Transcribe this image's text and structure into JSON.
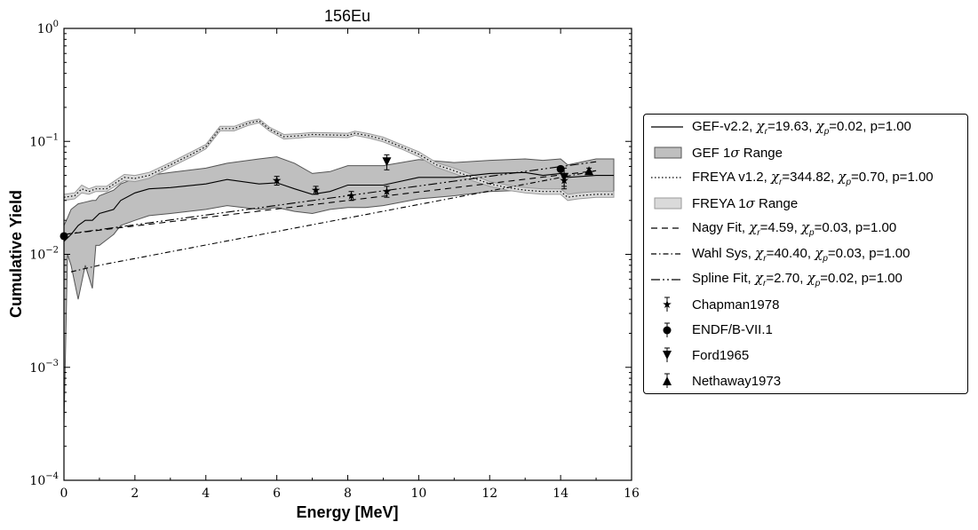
{
  "chart_data": {
    "type": "line",
    "title": "156Eu",
    "xlabel": "Energy [MeV]",
    "ylabel": "Cumulative Yield",
    "xlim": [
      0,
      16
    ],
    "ylim": [
      0.0001,
      1
    ],
    "yscale": "log",
    "x_ticks": [
      "0",
      "2",
      "4",
      "6",
      "8",
      "10",
      "12",
      "14",
      "16"
    ],
    "y_ticks": [
      {
        "base": "10",
        "exp": "−4"
      },
      {
        "base": "10",
        "exp": "−3"
      },
      {
        "base": "10",
        "exp": "−2"
      },
      {
        "base": "10",
        "exp": "−1"
      },
      {
        "base": "10",
        "exp": "0"
      }
    ],
    "legend_position": "right, outside",
    "legend": [
      {
        "label": "GEF-v2.2, ",
        "stats": {
          "chi_r": "19.63",
          "chi_p": "0.02",
          "p": "1.00"
        }
      },
      {
        "label": "GEF 1",
        "sigma_suffix": " Range"
      },
      {
        "label": "FREYA v1.2, ",
        "stats": {
          "chi_r": "344.82",
          "chi_p": "0.70",
          "p": "1.00"
        }
      },
      {
        "label": "FREYA 1",
        "sigma_suffix": " Range"
      },
      {
        "label": "Nagy Fit, ",
        "stats": {
          "chi_r": "4.59",
          "chi_p": "0.03",
          "p": "1.00"
        }
      },
      {
        "label": "Wahl Sys, ",
        "stats": {
          "chi_r": "40.40",
          "chi_p": "0.03",
          "p": "1.00"
        }
      },
      {
        "label": "Spline Fit, ",
        "stats": {
          "chi_r": "2.70",
          "chi_p": "0.02",
          "p": "1.00"
        }
      },
      {
        "label": "Chapman1978"
      },
      {
        "label": "ENDF/B-VII.1"
      },
      {
        "label": "Ford1965"
      },
      {
        "label": "Nethaway1973"
      }
    ],
    "series": [
      {
        "name": "GEF-v2.2",
        "kind": "line",
        "style": "solid",
        "x": [
          0,
          0.2,
          0.4,
          0.6,
          0.8,
          1.0,
          1.4,
          1.6,
          2.0,
          2.4,
          3.0,
          4.0,
          4.6,
          5.5,
          6.0,
          6.5,
          7.0,
          7.5,
          8.0,
          8.5,
          9.0,
          10.0,
          11.0,
          12.0,
          13.0,
          13.5,
          14.0,
          14.2,
          15.0,
          15.5
        ],
        "y": [
          0.013,
          0.015,
          0.018,
          0.02,
          0.02,
          0.023,
          0.025,
          0.03,
          0.035,
          0.038,
          0.039,
          0.042,
          0.046,
          0.042,
          0.043,
          0.038,
          0.034,
          0.036,
          0.041,
          0.041,
          0.041,
          0.048,
          0.048,
          0.052,
          0.053,
          0.05,
          0.052,
          0.048,
          0.05,
          0.05
        ]
      },
      {
        "name": "GEF 1σ Range",
        "kind": "band",
        "x": [
          0,
          0.1,
          0.2,
          0.4,
          0.6,
          0.8,
          0.9,
          1.0,
          1.4,
          1.6,
          2.0,
          2.4,
          3.0,
          4.0,
          4.6,
          5.5,
          6.0,
          6.5,
          7.0,
          7.5,
          8.0,
          8.5,
          9.0,
          10.0,
          11.0,
          12.0,
          13.0,
          13.5,
          14.0,
          14.2,
          15.0,
          15.5
        ],
        "lower": [
          0.0003,
          0.01,
          0.008,
          0.004,
          0.008,
          0.005,
          0.012,
          0.012,
          0.015,
          0.018,
          0.02,
          0.022,
          0.023,
          0.025,
          0.027,
          0.025,
          0.026,
          0.024,
          0.023,
          0.025,
          0.026,
          0.026,
          0.027,
          0.031,
          0.033,
          0.036,
          0.037,
          0.035,
          0.036,
          0.031,
          0.035,
          0.035
        ],
        "upper": [
          0.018,
          0.021,
          0.025,
          0.028,
          0.029,
          0.03,
          0.03,
          0.033,
          0.037,
          0.042,
          0.047,
          0.05,
          0.053,
          0.058,
          0.064,
          0.07,
          0.073,
          0.064,
          0.052,
          0.054,
          0.061,
          0.061,
          0.061,
          0.069,
          0.065,
          0.068,
          0.07,
          0.068,
          0.07,
          0.062,
          0.07,
          0.07
        ]
      },
      {
        "name": "FREYA v1.2",
        "kind": "line",
        "style": "dotted",
        "x": [
          0,
          0.3,
          0.5,
          0.7,
          0.9,
          1.2,
          1.7,
          2.0,
          2.4,
          3.0,
          3.6,
          4.0,
          4.4,
          4.8,
          5.2,
          5.5,
          5.8,
          6.2,
          6.6,
          7.0,
          7.5,
          8.0,
          8.2,
          8.6,
          9.0,
          9.5,
          10.0,
          10.5,
          11.0,
          11.5,
          12.0,
          12.5,
          13.0,
          13.5,
          14.0,
          14.2,
          14.5,
          15.0,
          15.5
        ],
        "y": [
          0.032,
          0.033,
          0.038,
          0.036,
          0.038,
          0.038,
          0.048,
          0.047,
          0.05,
          0.062,
          0.077,
          0.09,
          0.13,
          0.13,
          0.145,
          0.152,
          0.128,
          0.11,
          0.112,
          0.115,
          0.114,
          0.113,
          0.118,
          0.112,
          0.104,
          0.09,
          0.077,
          0.062,
          0.055,
          0.048,
          0.042,
          0.039,
          0.037,
          0.036,
          0.036,
          0.032,
          0.033,
          0.034,
          0.034
        ]
      },
      {
        "name": "FREYA 1σ Range",
        "kind": "band",
        "x": [
          0,
          0.3,
          0.5,
          0.7,
          0.9,
          1.2,
          1.7,
          2.0,
          2.4,
          3.0,
          3.6,
          4.0,
          4.4,
          4.8,
          5.2,
          5.5,
          5.8,
          6.2,
          6.6,
          7.0,
          7.5,
          8.0,
          8.2,
          8.6,
          9.0,
          9.5,
          10.0,
          10.5,
          11.0,
          11.5,
          12.0,
          12.5,
          13.0,
          13.5,
          14.0,
          14.2,
          14.5,
          15.0,
          15.5
        ],
        "lower": [
          0.03,
          0.031,
          0.035,
          0.034,
          0.036,
          0.036,
          0.045,
          0.044,
          0.047,
          0.059,
          0.073,
          0.086,
          0.124,
          0.124,
          0.139,
          0.146,
          0.123,
          0.105,
          0.107,
          0.11,
          0.109,
          0.108,
          0.113,
          0.107,
          0.099,
          0.086,
          0.073,
          0.059,
          0.052,
          0.045,
          0.04,
          0.037,
          0.035,
          0.034,
          0.034,
          0.03,
          0.031,
          0.032,
          0.032
        ],
        "upper": [
          0.034,
          0.035,
          0.041,
          0.038,
          0.04,
          0.04,
          0.051,
          0.05,
          0.053,
          0.065,
          0.081,
          0.094,
          0.136,
          0.136,
          0.151,
          0.158,
          0.133,
          0.115,
          0.117,
          0.12,
          0.119,
          0.118,
          0.123,
          0.117,
          0.109,
          0.094,
          0.081,
          0.065,
          0.058,
          0.051,
          0.044,
          0.041,
          0.039,
          0.038,
          0.038,
          0.034,
          0.035,
          0.036,
          0.036
        ]
      },
      {
        "name": "Nagy Fit",
        "kind": "line",
        "style": "dashed",
        "x": [
          0,
          15
        ],
        "y": [
          0.015,
          0.055
        ]
      },
      {
        "name": "Wahl Sys",
        "kind": "line",
        "style": "dashdot",
        "x": [
          0.2,
          1,
          15
        ],
        "y": [
          0.007,
          0.008,
          0.055
        ]
      },
      {
        "name": "Spline Fit",
        "kind": "line",
        "style": "dashdotdot",
        "x": [
          0,
          15
        ],
        "y": [
          0.015,
          0.066
        ]
      },
      {
        "name": "Chapman1978",
        "kind": "points",
        "marker": "star",
        "x": [
          6.0,
          7.1,
          8.1,
          9.1,
          14.1
        ],
        "y": [
          0.045,
          0.037,
          0.033,
          0.036,
          0.045
        ],
        "yerr": [
          0.004,
          0.003,
          0.003,
          0.004,
          0.005
        ]
      },
      {
        "name": "ENDF/B-VII.1",
        "kind": "points",
        "marker": "circle",
        "x": [
          0.0,
          14.0
        ],
        "y": [
          0.0145,
          0.057
        ],
        "yerr": [
          0.0008,
          0.003
        ]
      },
      {
        "name": "Ford1965",
        "kind": "points",
        "marker": "triangle-down",
        "x": [
          9.1,
          14.1
        ],
        "y": [
          0.066,
          0.048
        ],
        "yerr": [
          0.01,
          0.01
        ]
      },
      {
        "name": "Nethaway1973",
        "kind": "points",
        "marker": "triangle-up",
        "x": [
          14.8
        ],
        "y": [
          0.055
        ],
        "yerr": [
          0.003
        ]
      }
    ]
  }
}
